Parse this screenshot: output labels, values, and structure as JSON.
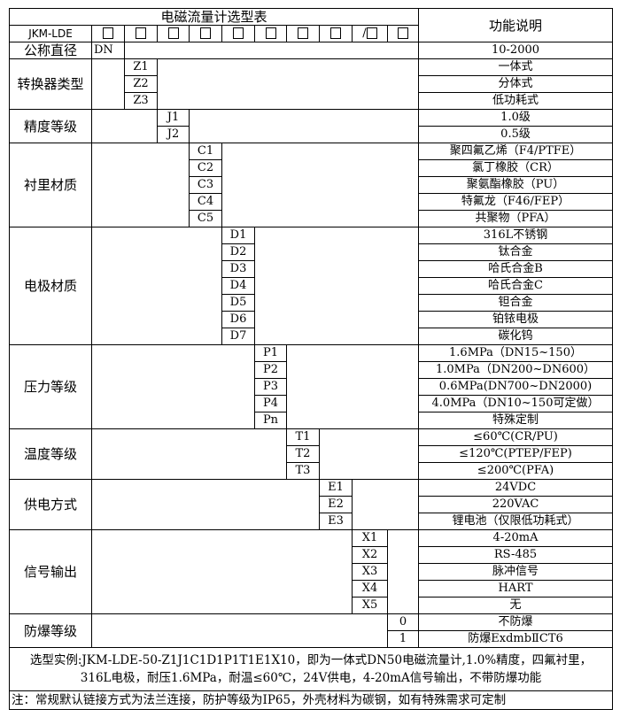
{
  "title": "电磁流量计选型表",
  "function_header": "功能说明",
  "model_prefix": "JKM-LDE",
  "code_boxes": [
    "□",
    "□",
    "□",
    "□",
    "□",
    "□",
    "□",
    "□",
    "/□",
    "□"
  ],
  "categories": [
    {
      "label": "公称直径",
      "options": [
        {
          "code": "DN",
          "desc": "10-2000"
        }
      ]
    },
    {
      "label": "转换器类型",
      "options": [
        {
          "code": "Z1",
          "desc": "一体式"
        },
        {
          "code": "Z2",
          "desc": "分体式"
        },
        {
          "code": "Z3",
          "desc": "低功耗式"
        }
      ]
    },
    {
      "label": "精度等级",
      "options": [
        {
          "code": "J1",
          "desc": "1.0级"
        },
        {
          "code": "J2",
          "desc": "0.5级"
        }
      ]
    },
    {
      "label": "衬里材质",
      "options": [
        {
          "code": "C1",
          "desc": "聚四氟乙烯（F4/PTFE）"
        },
        {
          "code": "C2",
          "desc": "氯丁橡胶（CR）"
        },
        {
          "code": "C3",
          "desc": "聚氨酯橡胶（PU）"
        },
        {
          "code": "C4",
          "desc": "特氟龙（F46/FEP）"
        },
        {
          "code": "C5",
          "desc": "共聚物（PFA）"
        }
      ]
    },
    {
      "label": "电极材质",
      "options": [
        {
          "code": "D1",
          "desc": "316L不锈钢"
        },
        {
          "code": "D2",
          "desc": "钛合金"
        },
        {
          "code": "D3",
          "desc": "哈氏合金B"
        },
        {
          "code": "D4",
          "desc": "哈氏合金C"
        },
        {
          "code": "D5",
          "desc": "钽合金"
        },
        {
          "code": "D6",
          "desc": "铂铱电极"
        },
        {
          "code": "D7",
          "desc": "碳化钨"
        }
      ]
    },
    {
      "label": "压力等级",
      "options": [
        {
          "code": "P1",
          "desc": "1.6MPa（DN15~150）"
        },
        {
          "code": "P2",
          "desc": "1.0MPa（DN200~DN600）"
        },
        {
          "code": "P3",
          "desc": "0.6MPa(DN700~DN2000)"
        },
        {
          "code": "P4",
          "desc": "4.0MPa（DN10~150可定做）"
        },
        {
          "code": "Pn",
          "desc": "特殊定制"
        }
      ]
    },
    {
      "label": "温度等级",
      "options": [
        {
          "code": "T1",
          "desc": "≤60℃(CR/PU)"
        },
        {
          "code": "T2",
          "desc": "≤120℃(PTEP/FEP)"
        },
        {
          "code": "T3",
          "desc": "≤200℃(PFA)"
        }
      ]
    },
    {
      "label": "供电方式",
      "options": [
        {
          "code": "E1",
          "desc": "24VDC"
        },
        {
          "code": "E2",
          "desc": "220VAC"
        },
        {
          "code": "E3",
          "desc": "锂电池（仅限低功耗式）"
        }
      ]
    },
    {
      "label": "信号输出",
      "options": [
        {
          "code": "X1",
          "desc": "4-20mA"
        },
        {
          "code": "X2",
          "desc": "RS-485"
        },
        {
          "code": "X3",
          "desc": "脉冲信号"
        },
        {
          "code": "X4",
          "desc": "HART"
        },
        {
          "code": "X5",
          "desc": "无"
        }
      ]
    },
    {
      "label": "防爆等级",
      "options": [
        {
          "code": "0",
          "desc": "不防爆"
        },
        {
          "code": "1",
          "desc": "防爆ExdmbⅡCT6"
        }
      ]
    }
  ],
  "example_line1": "选型实例:JKM-LDE-50-Z1J1C1D1P1T1E1X10，即为一体式DN50电磁流量计,1.0%精度，四氟衬里，",
  "example_line2": "316L电极，耐压1.6MPa，耐温≤60℃，24V供电，4-20mA信号输出，不带防爆功能",
  "note": "注：常规默认链接方式为法兰连接，防护等级为IP65，外壳材料为碳钢，如有特殊需求可定制"
}
